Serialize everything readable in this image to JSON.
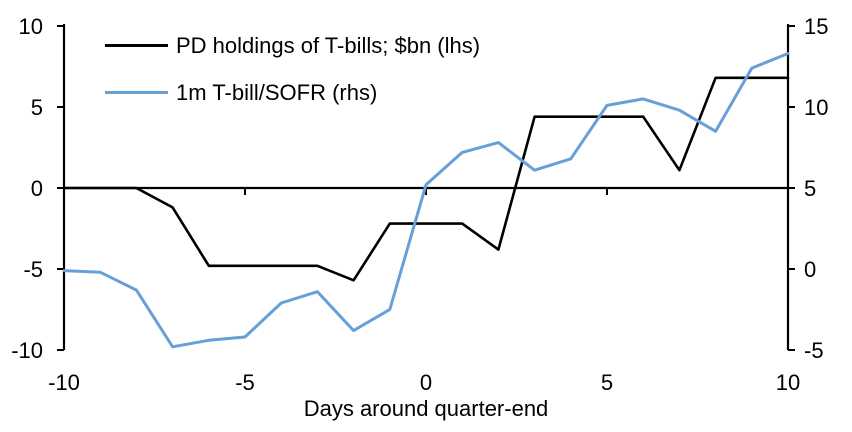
{
  "chart_data": {
    "type": "line",
    "title": "",
    "xlabel": "Days around quarter-end",
    "x": [
      -10,
      -9,
      -8,
      -7,
      -6,
      -5,
      -4,
      -3,
      -2,
      -1,
      0,
      1,
      2,
      3,
      4,
      5,
      6,
      7,
      8,
      9,
      10
    ],
    "series": [
      {
        "id": "pd-holdings",
        "name": "PD holdings of T-bills; $bn (lhs)",
        "axis": "left",
        "color": "#000000",
        "values": [
          0,
          0,
          0,
          -1.2,
          -4.8,
          -4.8,
          -4.8,
          -4.8,
          -5.7,
          -2.2,
          -2.2,
          -2.2,
          -3.8,
          4.4,
          4.4,
          4.4,
          4.4,
          1.1,
          6.8,
          6.8,
          6.8
        ]
      },
      {
        "id": "tbill-sofr",
        "name": "1m T-bill/SOFR (rhs)",
        "axis": "right",
        "color": "#67A0D8",
        "values": [
          -0.1,
          -0.2,
          -1.3,
          -4.8,
          -4.4,
          -4.2,
          -2.1,
          -1.4,
          -3.8,
          -2.5,
          5.2,
          7.2,
          7.8,
          6.1,
          6.8,
          10.1,
          10.5,
          9.8,
          8.5,
          12.4,
          13.3
        ]
      }
    ],
    "left_axis": {
      "range": [
        -10,
        10
      ],
      "ticks": [
        10,
        5,
        0,
        -5,
        -10
      ]
    },
    "right_axis": {
      "range": [
        -5,
        15
      ],
      "ticks": [
        15,
        10,
        5,
        0,
        -5
      ]
    },
    "x_axis": {
      "range": [
        -10,
        10
      ],
      "ticks": [
        -10,
        -5,
        0,
        5,
        10
      ]
    },
    "grid": "off",
    "legend_position": "top-left-inside",
    "axis_color": "#000000"
  }
}
